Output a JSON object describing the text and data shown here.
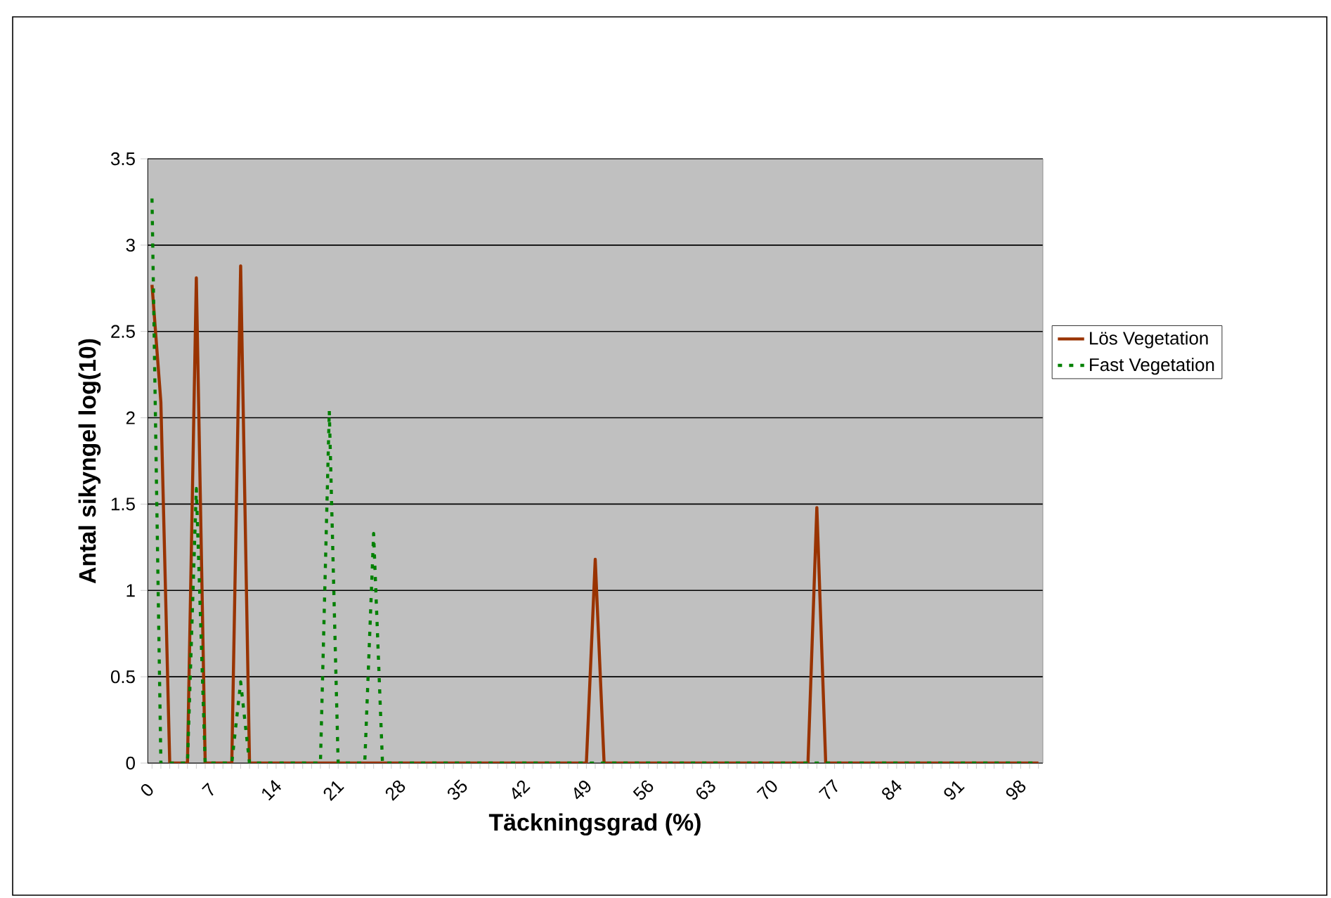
{
  "chart_data": {
    "type": "line",
    "xlabel": "Täckningsgrad (%)",
    "ylabel": "Antal sikyngel log(10)",
    "categories": [
      "0",
      null,
      null,
      null,
      null,
      null,
      null,
      "7",
      null,
      null,
      null,
      null,
      null,
      null,
      "14",
      null,
      null,
      null,
      null,
      null,
      null,
      "21",
      null,
      null,
      null,
      null,
      null,
      null,
      "28",
      null,
      null,
      null,
      null,
      null,
      null,
      "35",
      null,
      null,
      null,
      null,
      null,
      null,
      "42",
      null,
      null,
      null,
      null,
      null,
      null,
      "49",
      null,
      null,
      null,
      null,
      null,
      null,
      "56",
      null,
      null,
      null,
      null,
      null,
      null,
      "63",
      null,
      null,
      null,
      null,
      null,
      null,
      "70",
      null,
      null,
      null,
      null,
      null,
      null,
      "77",
      null,
      null,
      null,
      null,
      null,
      null,
      "84",
      null,
      null,
      null,
      null,
      null,
      null,
      "91",
      null,
      null,
      null,
      null,
      null,
      null,
      "98",
      null,
      null
    ],
    "series": [
      {
        "name": "Lös Vegetation",
        "color": "#993300",
        "line_style": "solid",
        "values": [
          2.77,
          2.09,
          0,
          0,
          0,
          2.81,
          0,
          0,
          0,
          0,
          2.88,
          0,
          0,
          0,
          0,
          0,
          0,
          0,
          0,
          0,
          0,
          0,
          0,
          0,
          0,
          0,
          0,
          0,
          0,
          0,
          0,
          0,
          0,
          0,
          0,
          0,
          0,
          0,
          0,
          0,
          0,
          0,
          0,
          0,
          0,
          0,
          0,
          0,
          0,
          0,
          1.18,
          0,
          0,
          0,
          0,
          0,
          0,
          0,
          0,
          0,
          0,
          0,
          0,
          0,
          0,
          0,
          0,
          0,
          0,
          0,
          0,
          0,
          0,
          0,
          0,
          1.48,
          0,
          0,
          0,
          0,
          0,
          0,
          0,
          0,
          0,
          0,
          0,
          0,
          0,
          0,
          0,
          0,
          0,
          0,
          0,
          0,
          0,
          0,
          0,
          0,
          0
        ]
      },
      {
        "name": "Fast Vegetation",
        "color": "#008000",
        "line_style": "dashed",
        "values": [
          3.27,
          0,
          0,
          0,
          0,
          1.59,
          0,
          0,
          0,
          0,
          0.47,
          0,
          0,
          0,
          0,
          0,
          0,
          0,
          0,
          0,
          2.04,
          0,
          0,
          0,
          0,
          1.33,
          0,
          0,
          0,
          0,
          0,
          0,
          0,
          0,
          0,
          0,
          0,
          0,
          0,
          0,
          0,
          0,
          0,
          0,
          0,
          0,
          0,
          0,
          0,
          0,
          0,
          0,
          0,
          0,
          0,
          0,
          0,
          0,
          0,
          0,
          0,
          0,
          0,
          0,
          0,
          0,
          0,
          0,
          0,
          0,
          0,
          0,
          0,
          0,
          0,
          0,
          0,
          0,
          0,
          0,
          0,
          0,
          0,
          0,
          0,
          0,
          0,
          0,
          0,
          0,
          0,
          0,
          0,
          0,
          0,
          0,
          0,
          0,
          0,
          0,
          0
        ]
      }
    ],
    "ylim": [
      0,
      3.5
    ],
    "yticks": [
      0,
      0.5,
      1,
      1.5,
      2,
      2.5,
      3,
      3.5
    ],
    "grid": "y",
    "legend": "right",
    "marker": "none"
  }
}
